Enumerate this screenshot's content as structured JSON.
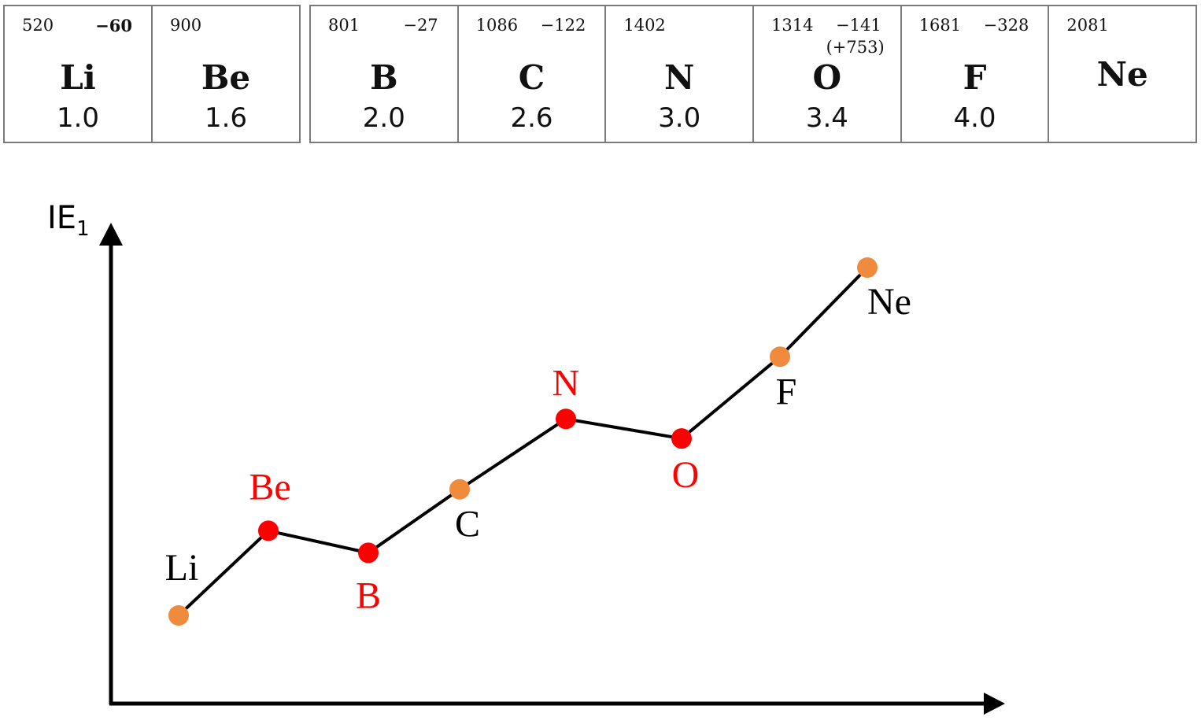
{
  "table": {
    "left": [
      {
        "ie": "520",
        "ea": "−60",
        "ea_bold": true,
        "ea2": "",
        "symbol": "Li",
        "en": "1.0"
      },
      {
        "ie": "900",
        "ea": "",
        "ea_bold": false,
        "ea2": "",
        "symbol": "Be",
        "en": "1.6"
      }
    ],
    "right": [
      {
        "ie": "801",
        "ea": "−27",
        "ea_bold": false,
        "ea2": "",
        "symbol": "B",
        "en": "2.0"
      },
      {
        "ie": "1086",
        "ea": "−122",
        "ea_bold": false,
        "ea2": "",
        "symbol": "C",
        "en": "2.6"
      },
      {
        "ie": "1402",
        "ea": "",
        "ea_bold": false,
        "ea2": "",
        "symbol": "N",
        "en": "3.0"
      },
      {
        "ie": "1314",
        "ea": "−141",
        "ea_bold": false,
        "ea2": "(+753)",
        "symbol": "O",
        "en": "3.4"
      },
      {
        "ie": "1681",
        "ea": "−328",
        "ea_bold": false,
        "ea2": "",
        "symbol": "F",
        "en": "4.0"
      },
      {
        "ie": "2081",
        "ea": "",
        "ea_bold": false,
        "ea2": "",
        "symbol": "Ne",
        "en": ""
      }
    ]
  },
  "chart_data": {
    "type": "line",
    "title": "",
    "ylabel": "IE",
    "ylabel_subscript": "1",
    "xlabel": "",
    "x": [
      "Li",
      "Be",
      "B",
      "C",
      "N",
      "O",
      "F",
      "Ne"
    ],
    "series": [
      {
        "values": [
          520,
          900,
          801,
          1086,
          1402,
          1314,
          1681,
          2081
        ]
      }
    ],
    "point_colors": [
      "#f08a3c",
      "#ff0000",
      "#ff0000",
      "#f08a3c",
      "#ff0000",
      "#ff0000",
      "#f08a3c",
      "#f08a3c"
    ],
    "label_colors": [
      "#000000",
      "#ff0000",
      "#ff0000",
      "#000000",
      "#ff0000",
      "#ff0000",
      "#000000",
      "#000000"
    ],
    "line_color": "#000000",
    "grid": false,
    "legend": "none",
    "axis_ticks": false
  }
}
